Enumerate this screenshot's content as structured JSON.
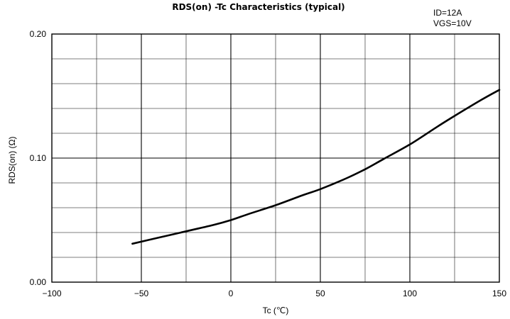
{
  "chart_data": {
    "type": "line",
    "title": "RDS(on) -Tc Characteristics (typical)",
    "conditions": [
      "ID=12A",
      "VGS=10V"
    ],
    "xlabel": "Tc (℃)",
    "ylabel": "RDS(on) (Ω)",
    "xlim": [
      -100,
      150
    ],
    "ylim": [
      0,
      0.2
    ],
    "x_ticks": [
      -100,
      -50,
      0,
      50,
      100,
      150
    ],
    "x_tick_labels": [
      "−100",
      "−50",
      "0",
      "50",
      "100",
      "150"
    ],
    "y_ticks": [
      0,
      0.1,
      0.2
    ],
    "y_tick_labels": [
      "0.00",
      "0.10",
      "0.20"
    ],
    "x_minor_step": 25,
    "y_minor_step": 0.02,
    "grid": true,
    "series": [
      {
        "x": [
          -55,
          -40,
          -25,
          -10,
          0,
          10,
          25,
          40,
          50,
          65,
          75,
          85,
          100,
          115,
          125,
          140,
          150
        ],
        "y": [
          0.031,
          0.036,
          0.041,
          0.046,
          0.05,
          0.055,
          0.062,
          0.07,
          0.075,
          0.084,
          0.091,
          0.099,
          0.111,
          0.125,
          0.134,
          0.147,
          0.155
        ],
        "color": "#000000"
      }
    ]
  }
}
